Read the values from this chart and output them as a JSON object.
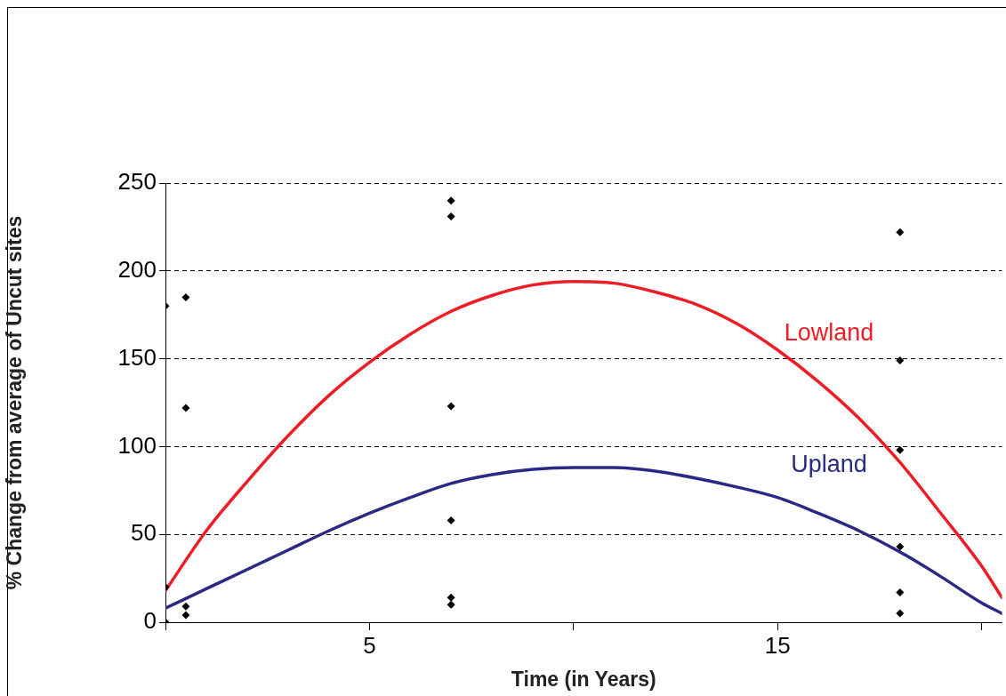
{
  "chart_data": {
    "type": "scatter",
    "xlabel": "Time (in Years)",
    "ylabel": "% Change from average of Uncut sites",
    "xlim": [
      0,
      20.5
    ],
    "xticks": [
      {
        "value": 0,
        "label": null
      },
      5,
      {
        "value": 10,
        "label": null
      },
      15,
      {
        "value": 20,
        "label": null
      }
    ],
    "ylim": [
      0,
      250
    ],
    "yticks": [
      0,
      50,
      100,
      150,
      200,
      250
    ],
    "grid": "y",
    "legend": false,
    "series": [
      {
        "type": "scatter",
        "color": "#000000",
        "marker": "diamond",
        "x": [
          0,
          0,
          0,
          0.5,
          0.5,
          0.5,
          0.5,
          7,
          7,
          7,
          7,
          7,
          7,
          18,
          18,
          18,
          18,
          18,
          18
        ],
        "values": [
          180,
          20,
          0,
          185,
          122,
          9,
          4,
          240,
          231,
          123,
          58,
          14,
          10,
          222,
          149,
          98,
          43,
          17,
          5
        ]
      },
      {
        "type": "line",
        "name": "Lowland",
        "color": "#ee1c25",
        "marker": "none",
        "line_style": "solid",
        "x": [
          0,
          1,
          2,
          3,
          4,
          5,
          6,
          7,
          8,
          9,
          10,
          11,
          12,
          13,
          14,
          15,
          16,
          17,
          18,
          19,
          20,
          20.5
        ],
        "values": [
          18,
          52,
          80,
          106,
          129,
          148,
          164,
          177,
          186,
          192,
          194,
          193,
          188,
          181,
          170,
          155,
          137,
          116,
          91,
          62,
          32,
          14
        ]
      },
      {
        "type": "line",
        "name": "Upland",
        "color": "#2a2a84",
        "marker": "none",
        "line_style": "solid",
        "x": [
          0,
          1,
          2,
          3,
          4,
          5,
          6,
          7,
          8,
          9,
          10,
          11,
          12,
          13,
          14,
          15,
          16,
          17,
          18,
          19,
          20,
          20.5
        ],
        "values": [
          8,
          19,
          30,
          41,
          52,
          62,
          71,
          79,
          84,
          87,
          88,
          88,
          86,
          82,
          77,
          71,
          62,
          52,
          40,
          26,
          11,
          5
        ]
      }
    ]
  }
}
